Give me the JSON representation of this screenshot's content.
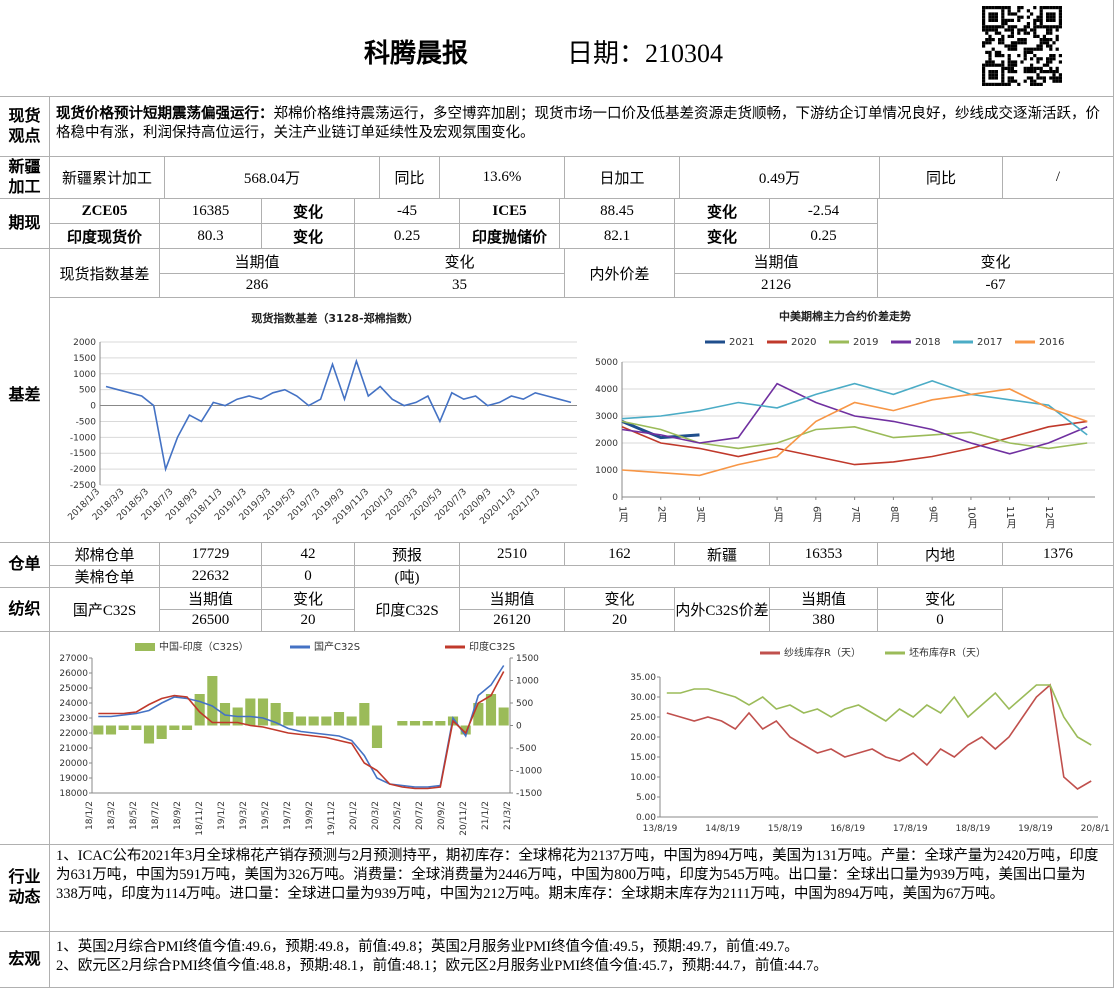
{
  "header": {
    "title": "科腾晨报",
    "date": "日期：210304"
  },
  "spot_view": {
    "label": "现货观点",
    "heading": "现货价格预计短期震荡偏强运行：",
    "text": "郑棉价格维持震荡运行，多空博弈加剧；现货市场一口价及低基差资源走货顺畅，下游纺企订单情况良好，纱线成交逐渐活跃，价格稳中有涨，利润保持高位运行，关注产业链订单延续性及宏观氛围变化。"
  },
  "xinjiang": {
    "label": "新疆加工",
    "cells": [
      "新疆累计加工",
      "568.04万",
      "同比",
      "13.6%",
      "日加工",
      "0.49万",
      "同比",
      "/"
    ]
  },
  "futures": {
    "label": "期现",
    "rows": [
      [
        "ZCE05",
        "16385",
        "变化",
        "-45",
        "ICE5",
        "88.45",
        "变化",
        "-2.54"
      ],
      [
        "印度现货价",
        "80.3",
        "变化",
        "0.25",
        "印度抛储价",
        "82.1",
        "变化",
        "0.25"
      ]
    ]
  },
  "basis": {
    "label": "基差",
    "header": [
      "现货指数基差",
      "当期值",
      "变化",
      "内外价差",
      "当期值",
      "变化"
    ],
    "values": [
      "286",
      "35",
      "2126",
      "-67"
    ],
    "chart1": {
      "type": "line",
      "title": "现货指数基差（3128-郑棉指数）",
      "ylim": [
        -2500,
        2000
      ],
      "yticks": [
        -2500,
        -2000,
        -1500,
        -1000,
        -500,
        0,
        500,
        1000,
        1500,
        2000
      ],
      "grid": true,
      "x_labels": [
        "2018/1/3",
        "2018/3/3",
        "2018/5/3",
        "2018/7/3",
        "2018/9/3",
        "2018/11/3",
        "2019/1/3",
        "2019/3/3",
        "2019/5/3",
        "2019/7/3",
        "2019/9/3",
        "2019/11/3",
        "2020/1/3",
        "2020/3/3",
        "2020/5/3",
        "2020/7/3",
        "2020/9/3",
        "2020/11/3",
        "2021/1/3"
      ],
      "series": [
        {
          "name": "现货指数基差（3128-郑棉指数）",
          "color": "#4472c4",
          "values": [
            600,
            500,
            400,
            300,
            0,
            -2000,
            -1000,
            -300,
            -500,
            100,
            0,
            200,
            300,
            200,
            400,
            500,
            300,
            0,
            200,
            1300,
            200,
            1400,
            300,
            600,
            200,
            0,
            100,
            300,
            -500,
            400,
            200,
            300,
            0,
            100,
            300,
            200,
            400,
            300,
            200,
            100
          ]
        }
      ]
    },
    "chart2": {
      "type": "line",
      "title": "中美期棉主力合约价差走势",
      "ylim": [
        0,
        5000
      ],
      "yticks": [
        0,
        1000,
        2000,
        3000,
        4000,
        5000
      ],
      "grid": true,
      "xlim": [
        1,
        13.2
      ],
      "xticks": [
        {
          "value": 1,
          "label": "1月"
        },
        {
          "value": 2,
          "label": "2月"
        },
        {
          "value": 3,
          "label": "3月"
        },
        {
          "value": 5,
          "label": "5月"
        },
        {
          "value": 6,
          "label": "6月"
        },
        {
          "value": 7,
          "label": "7月"
        },
        {
          "value": 8,
          "label": "8月"
        },
        {
          "value": 9,
          "label": "9月"
        },
        {
          "value": 10,
          "label": "10月"
        },
        {
          "value": 11,
          "label": "11月"
        },
        {
          "value": 12,
          "label": "12月"
        }
      ],
      "x": [
        1,
        2,
        3,
        4,
        5,
        6,
        7,
        8,
        9,
        10,
        11,
        12,
        13
      ],
      "series": [
        {
          "name": "2021",
          "color": "#1f4e8c",
          "values": [
            2800,
            2200,
            2300,
            null,
            null,
            null,
            null,
            null,
            null,
            null,
            null,
            null,
            null
          ]
        },
        {
          "name": "2020",
          "color": "#c0392b",
          "values": [
            2600,
            2000,
            1800,
            1500,
            1800,
            1500,
            1200,
            1300,
            1500,
            1800,
            2200,
            2600,
            2800
          ]
        },
        {
          "name": "2019",
          "color": "#9bbb59",
          "values": [
            2800,
            2500,
            2000,
            1800,
            2000,
            2500,
            2600,
            2200,
            2300,
            2400,
            2000,
            1800,
            2000
          ]
        },
        {
          "name": "2018",
          "color": "#7030a0",
          "values": [
            2500,
            2300,
            2000,
            2200,
            4200,
            3500,
            3000,
            2800,
            2500,
            2000,
            1600,
            2000,
            2600
          ]
        },
        {
          "name": "2017",
          "color": "#4bacc6",
          "values": [
            2900,
            3000,
            3200,
            3500,
            3300,
            3800,
            4200,
            3800,
            4300,
            3800,
            3600,
            3400,
            2300
          ]
        },
        {
          "name": "2016",
          "color": "#f79646",
          "values": [
            1000,
            900,
            800,
            1200,
            1500,
            2800,
            3500,
            3200,
            3600,
            3800,
            4000,
            3300,
            2800
          ]
        }
      ]
    }
  },
  "warehouse": {
    "label": "仓单",
    "rows": [
      [
        "郑棉仓单",
        "17729",
        "42",
        "预报",
        "2510",
        "162",
        "新疆",
        "16353",
        "内地",
        "1376"
      ],
      [
        "美棉仓单",
        "22632",
        "0",
        "(吨)"
      ]
    ]
  },
  "textile": {
    "label": "纺织",
    "header": [
      "国产C32S",
      "当期值",
      "变化",
      "印度C32S",
      "当期值",
      "变化",
      "内外C32S价差",
      "当期值",
      "变化"
    ],
    "values": [
      "26500",
      "20",
      "26120",
      "20",
      "380",
      "0"
    ],
    "chart3": {
      "type": "line",
      "ylim": [
        18000,
        27000
      ],
      "yticks": [
        18000,
        19000,
        20000,
        21000,
        22000,
        23000,
        24000,
        25000,
        26000,
        27000
      ],
      "y2lim": [
        -1500,
        1500
      ],
      "y2ticks": [
        -1500,
        -1000,
        -500,
        0,
        500,
        1000,
        1500
      ],
      "grid": false,
      "x_labels": [
        "18/1/2",
        "18/3/2",
        "18/5/2",
        "18/7/2",
        "18/9/2",
        "18/11/2",
        "19/1/2",
        "19/3/2",
        "19/5/2",
        "19/7/2",
        "19/9/2",
        "19/11/2",
        "20/1/2",
        "20/3/2",
        "20/5/2",
        "20/7/2",
        "20/9/2",
        "20/11/2",
        "21/1/2",
        "21/3/2"
      ],
      "series": [
        {
          "name": "中国-印度（C32S）",
          "type": "bar",
          "axis": "y2",
          "color": "#9bbb59",
          "values": [
            -200,
            -200,
            -100,
            -100,
            -400,
            -300,
            -100,
            -100,
            700,
            1100,
            500,
            400,
            600,
            600,
            500,
            300,
            200,
            200,
            200,
            300,
            200,
            500,
            -500,
            0,
            100,
            100,
            100,
            100,
            200,
            -200,
            500,
            700,
            400
          ]
        },
        {
          "name": "国产C32S",
          "color": "#4472c4",
          "values": [
            23100,
            23100,
            23200,
            23300,
            23500,
            24000,
            24400,
            24300,
            24100,
            23800,
            23200,
            23100,
            23100,
            23000,
            22700,
            22300,
            22100,
            22000,
            21900,
            21800,
            21500,
            20500,
            19000,
            18600,
            18500,
            18400,
            18400,
            18500,
            23000,
            21800,
            24500,
            25200,
            26500
          ]
        },
        {
          "name": "印度C32S",
          "color": "#c0392b",
          "values": [
            23300,
            23300,
            23300,
            23400,
            23900,
            24300,
            24500,
            24400,
            23400,
            22700,
            22700,
            22700,
            22500,
            22400,
            22200,
            22000,
            21900,
            21800,
            21700,
            21500,
            21300,
            20000,
            19500,
            18600,
            18400,
            18300,
            18300,
            18400,
            22800,
            22000,
            24000,
            24500,
            26100
          ]
        }
      ]
    },
    "chart4": {
      "type": "line",
      "ylim": [
        0,
        35
      ],
      "yticks": [
        {
          "value": 0,
          "label": "0.00"
        },
        {
          "value": 5,
          "label": "5.00"
        },
        {
          "value": 10,
          "label": "10.00"
        },
        {
          "value": 15,
          "label": "15.00"
        },
        {
          "value": 20,
          "label": "20.00"
        },
        {
          "value": 25,
          "label": "25.00"
        },
        {
          "value": 30,
          "label": "30.00"
        },
        {
          "value": 35,
          "label": "35.00"
        }
      ],
      "grid": false,
      "x_labels": [
        "13/8/19",
        "14/8/19",
        "15/8/19",
        "16/8/19",
        "17/8/19",
        "18/8/19",
        "19/8/19",
        "20/8/19"
      ],
      "series": [
        {
          "name": "纱线库存R（天）",
          "color": "#c0504d",
          "values": [
            26,
            25,
            24,
            25,
            24,
            22,
            26,
            22,
            24,
            20,
            18,
            16,
            17,
            15,
            16,
            17,
            15,
            14,
            16,
            13,
            17,
            15,
            18,
            20,
            17,
            20,
            25,
            30,
            33,
            10,
            7,
            9
          ]
        },
        {
          "name": "坯布库存R（天）",
          "color": "#9bbb59",
          "values": [
            31,
            31,
            32,
            32,
            31,
            30,
            28,
            30,
            27,
            28,
            26,
            27,
            25,
            27,
            28,
            26,
            24,
            27,
            25,
            28,
            26,
            30,
            25,
            28,
            31,
            27,
            30,
            33,
            33,
            25,
            20,
            18
          ]
        }
      ]
    }
  },
  "industry": {
    "label": "行业动态",
    "text": "1、ICAC公布2021年3月全球棉花产销存预测与2月预测持平，期初库存：全球棉花为2137万吨，中国为894万吨，美国为131万吨。产量：全球产量为2420万吨，印度为631万吨，中国为591万吨，美国为326万吨。消费量：全球消费量为2446万吨，中国为800万吨，印度为545万吨。出口量：全球出口量为939万吨，美国出口量为338万吨，印度为114万吨。进口量：全球进口量为939万吨，中国为212万吨。期末库存：全球期末库存为2111万吨，中国为894万吨，美国为67万吨。"
  },
  "macro": {
    "label": "宏观",
    "lines": [
      "1、英国2月综合PMI终值今值:49.6，预期:49.8，前值:49.8；英国2月服务业PMI终值今值:49.5，预期:49.7，前值:49.7。",
      "2、欧元区2月综合PMI终值今值:48.8，预期:48.1，前值:48.1；欧元区2月服务业PMI终值今值:45.7，预期:44.7，前值:44.7。"
    ]
  }
}
